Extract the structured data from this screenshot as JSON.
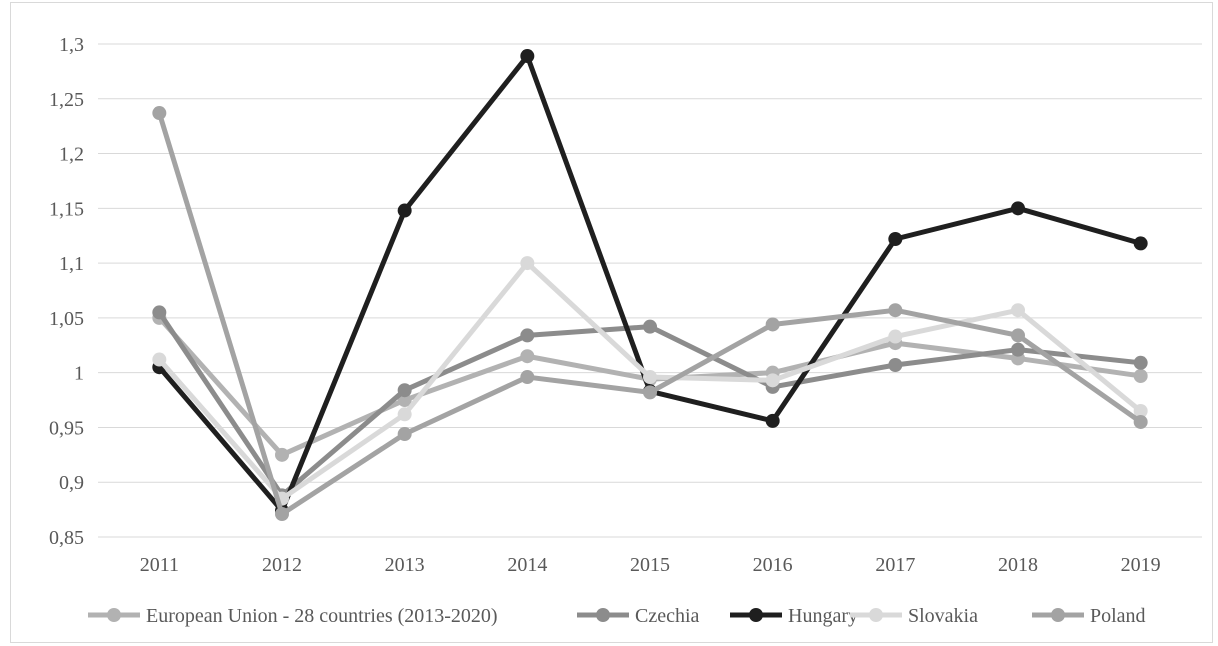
{
  "chart_data": {
    "type": "line",
    "title": "",
    "xlabel": "",
    "ylabel": "",
    "categories": [
      "2011",
      "2012",
      "2013",
      "2014",
      "2015",
      "2016",
      "2017",
      "2018",
      "2019"
    ],
    "ylim": [
      0.85,
      1.3
    ],
    "yticks": [
      "0,85",
      "0,9",
      "0,95",
      "1",
      "1,05",
      "1,1",
      "1,15",
      "1,2",
      "1,25",
      "1,3"
    ],
    "grid": true,
    "legend_position": "bottom",
    "series": [
      {
        "name": "European Union - 28 countries (2013-2020)",
        "color": "#b2b2b2",
        "values": [
          1.05,
          0.925,
          0.975,
          1.015,
          0.994,
          1.0,
          1.027,
          1.013,
          0.997
        ]
      },
      {
        "name": "Czechia",
        "color": "#8c8c8c",
        "values": [
          1.055,
          0.888,
          0.984,
          1.034,
          1.042,
          0.987,
          1.007,
          1.021,
          1.009
        ]
      },
      {
        "name": "Hungary",
        "color": "#1f1f1f",
        "values": [
          1.005,
          0.874,
          1.148,
          1.289,
          0.983,
          0.956,
          1.122,
          1.15,
          1.118
        ]
      },
      {
        "name": "Slovakia",
        "color": "#d9d9d9",
        "values": [
          1.012,
          0.885,
          0.962,
          1.1,
          0.996,
          0.993,
          1.033,
          1.057,
          0.965
        ]
      },
      {
        "name": "Poland",
        "color": "#a3a3a3",
        "values": [
          1.237,
          0.871,
          0.944,
          0.996,
          0.982,
          1.044,
          1.057,
          1.034,
          0.955
        ]
      }
    ]
  }
}
